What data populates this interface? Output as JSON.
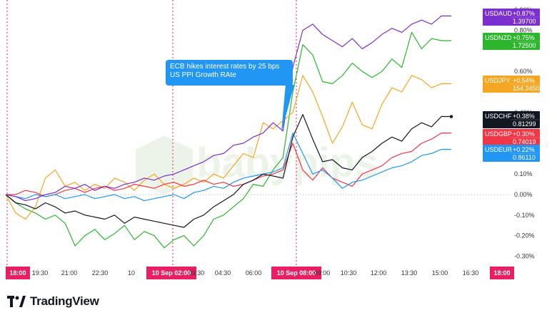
{
  "branding": {
    "watermark_text": "babypips",
    "logo_text": "TradingView"
  },
  "annotation": {
    "line1": "ECB hikes interest rates by 25 bps",
    "line2": "US PPI Growth RAte"
  },
  "chart_data": {
    "type": "line",
    "x_tick_labels": [
      "18:00",
      "19:30",
      "21:00",
      "22:30",
      "10",
      "10 Sep  02:00",
      "03:30",
      "04:30",
      "06:00",
      "10 Sep  08:00",
      "09:00",
      "10:30",
      "12:00",
      "13:30",
      "15:00",
      "16:30",
      "18:00"
    ],
    "highlighted_ticks": [
      "18:00",
      "10 Sep  02:00",
      "10 Sep  08:00"
    ],
    "event_markers": [
      "18:00",
      "10 Sep  02:00",
      "10 Sep  08:00"
    ],
    "ylim": [
      -0.33,
      0.92
    ],
    "y_ticks": [
      0.9,
      0.8,
      0.6,
      0.4,
      0.2,
      0.1,
      0.0,
      -0.1,
      -0.2,
      -0.3
    ],
    "y_tick_labels": [
      "0.90%",
      "0.80%",
      "0.60%",
      "0.40%",
      "0.20%",
      "0.10%",
      "0.00%",
      "-0.10%",
      "-0.20%",
      "-0.30%"
    ],
    "grid": false,
    "legend": "right",
    "series": [
      {
        "name": "USDAUD",
        "change": "+0.87%",
        "price": "1.39700",
        "color": "#7b2fcf",
        "values": [
          0,
          -0.01,
          -0.03,
          -0.02,
          0,
          0.01,
          0.04,
          0.03,
          0.05,
          0.02,
          0.04,
          0.03,
          0.05,
          0.06,
          0.08,
          0.07,
          0.09,
          0.1,
          0.12,
          0.14,
          0.16,
          0.19,
          0.2,
          0.24,
          0.25,
          0.28,
          0.3,
          0.35,
          0.31,
          0.62,
          0.8,
          0.83,
          0.78,
          0.75,
          0.72,
          0.76,
          0.71,
          0.74,
          0.78,
          0.81,
          0.79,
          0.83,
          0.85,
          0.83,
          0.87,
          0.87
        ]
      },
      {
        "name": "USDNZD",
        "change": "+0.75%",
        "price": "1.72500",
        "color": "#2db52d",
        "values": [
          0,
          -0.04,
          -0.07,
          -0.09,
          -0.12,
          -0.1,
          -0.14,
          -0.25,
          -0.2,
          -0.17,
          -0.22,
          -0.19,
          -0.15,
          -0.22,
          -0.18,
          -0.2,
          -0.26,
          -0.22,
          -0.2,
          -0.25,
          -0.2,
          -0.12,
          -0.1,
          -0.06,
          -0.02,
          0.05,
          0.04,
          0.12,
          0.18,
          0.5,
          0.73,
          0.68,
          0.55,
          0.54,
          0.58,
          0.64,
          0.6,
          0.57,
          0.6,
          0.66,
          0.62,
          0.79,
          0.71,
          0.76,
          0.75,
          0.75
        ]
      },
      {
        "name": "USDJPY",
        "change": "+0.54%",
        "price": "154.34500",
        "color": "#f5a623",
        "values": [
          0,
          -0.09,
          -0.12,
          -0.06,
          0.08,
          0.12,
          0.04,
          0.06,
          0.02,
          0.05,
          0.03,
          0.08,
          0.06,
          0.02,
          0.07,
          0.1,
          0.05,
          0.03,
          0.05,
          0.08,
          0.06,
          0.1,
          0.08,
          0.14,
          0.2,
          0.18,
          0.35,
          0.32,
          0.36,
          0.4,
          0.58,
          0.5,
          0.38,
          0.25,
          0.33,
          0.45,
          0.34,
          0.32,
          0.44,
          0.52,
          0.5,
          0.58,
          0.56,
          0.52,
          0.54,
          0.54
        ]
      },
      {
        "name": "USDCHF",
        "change": "+0.38%",
        "price": "0.81299",
        "color": "#131722",
        "values": [
          0,
          -0.04,
          -0.05,
          -0.07,
          -0.04,
          -0.06,
          -0.09,
          -0.08,
          -0.1,
          -0.11,
          -0.12,
          -0.1,
          -0.14,
          -0.11,
          -0.12,
          -0.13,
          -0.14,
          -0.15,
          -0.16,
          -0.12,
          -0.1,
          -0.06,
          -0.03,
          0.0,
          0.05,
          0.07,
          0.1,
          0.09,
          0.08,
          0.28,
          0.39,
          0.27,
          0.16,
          0.17,
          0.13,
          0.12,
          0.18,
          0.21,
          0.25,
          0.28,
          0.26,
          0.32,
          0.35,
          0.33,
          0.38,
          0.38
        ]
      },
      {
        "name": "USDGBP",
        "change": "+0.30%",
        "price": "0.74019",
        "color": "#f23645",
        "values": [
          0,
          0.0,
          0.02,
          0.01,
          -0.01,
          0.0,
          0.02,
          0.03,
          0.01,
          0.03,
          0.04,
          0.02,
          0.03,
          0.05,
          0.04,
          0.03,
          0.05,
          0.06,
          0.04,
          0.05,
          0.07,
          0.05,
          0.06,
          0.04,
          0.05,
          0.07,
          0.09,
          0.1,
          0.12,
          0.25,
          0.12,
          0.07,
          0.13,
          0.08,
          0.06,
          0.04,
          0.1,
          0.12,
          0.14,
          0.18,
          0.2,
          0.21,
          0.25,
          0.27,
          0.3,
          0.3
        ]
      },
      {
        "name": "USDEUR",
        "change": "+0.22%",
        "price": "0.86110",
        "color": "#2196f3",
        "values": [
          0,
          -0.01,
          -0.02,
          0.0,
          -0.01,
          0.0,
          -0.02,
          -0.01,
          0.0,
          -0.02,
          -0.01,
          0.0,
          -0.02,
          -0.01,
          -0.03,
          -0.02,
          -0.01,
          0.0,
          -0.02,
          0.01,
          0.02,
          0.04,
          0.03,
          0.06,
          0.08,
          0.09,
          0.1,
          0.11,
          0.13,
          0.3,
          0.2,
          0.1,
          0.12,
          0.08,
          0.03,
          0.06,
          0.07,
          0.09,
          0.11,
          0.13,
          0.14,
          0.16,
          0.19,
          0.2,
          0.22,
          0.22
        ]
      }
    ]
  }
}
